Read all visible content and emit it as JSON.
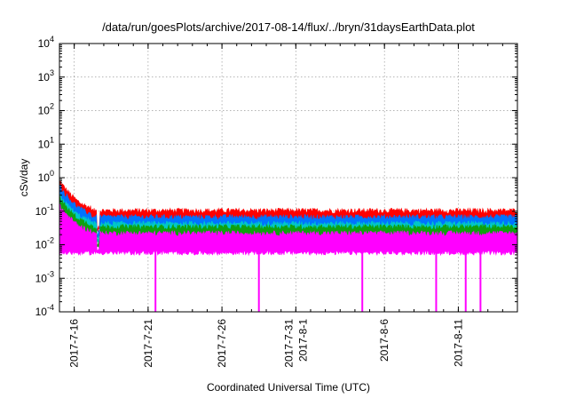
{
  "chart_data": {
    "type": "line",
    "title": "/data/run/goesPlots/archive/2017-08-14/flux/../bryn/31daysEarthData.plot",
    "xlabel": "Coordinated Universal Time (UTC)",
    "ylabel": "cSv/day",
    "yscale": "log",
    "ylim": [
      0.0001,
      10000
    ],
    "xlim": [
      "2017-07-15",
      "2017-08-15"
    ],
    "grid": true,
    "legend": "none",
    "y_ticks": [
      {
        "value": 0.0001,
        "base": "10",
        "exp": "-4"
      },
      {
        "value": 0.001,
        "base": "10",
        "exp": "-3"
      },
      {
        "value": 0.01,
        "base": "10",
        "exp": "-2"
      },
      {
        "value": 0.1,
        "base": "10",
        "exp": "-1"
      },
      {
        "value": 1,
        "base": "10",
        "exp": "0"
      },
      {
        "value": 10,
        "base": "10",
        "exp": "1"
      },
      {
        "value": 100,
        "base": "10",
        "exp": "2"
      },
      {
        "value": 1000,
        "base": "10",
        "exp": "3"
      },
      {
        "value": 10000,
        "base": "10",
        "exp": "4"
      }
    ],
    "x_ticks": [
      {
        "date": "2017-07-16",
        "labels": [
          "2017-7-16"
        ]
      },
      {
        "date": "2017-07-21",
        "labels": [
          "2017-7-21"
        ]
      },
      {
        "date": "2017-07-26",
        "labels": [
          "2017-7-26"
        ]
      },
      {
        "date": "2017-07-31",
        "labels": [
          "2017-7-31",
          "2017-8-1"
        ]
      },
      {
        "date": "2017-08-06",
        "labels": [
          "2017-8-6"
        ]
      },
      {
        "date": "2017-08-11",
        "labels": [
          "2017-8-11"
        ]
      }
    ],
    "series": [
      {
        "color": "#ff0000",
        "typical": 0.085,
        "peak_start": 0.65
      },
      {
        "color": "#0073ff",
        "typical": 0.055,
        "peak_start": 0.45
      },
      {
        "color": "#00c8c8",
        "typical": 0.035,
        "peak_start": 0.25
      },
      {
        "color": "#10a010",
        "typical": 0.028,
        "peak_start": 0.2
      },
      {
        "color": "#ff00ff",
        "typical": 0.018,
        "peak_start": 0.12
      }
    ],
    "dropouts": [
      "2017-07-21",
      "2017-07-28",
      "2017-08-04",
      "2017-08-09",
      "2017-08-11",
      "2017-08-12"
    ]
  }
}
